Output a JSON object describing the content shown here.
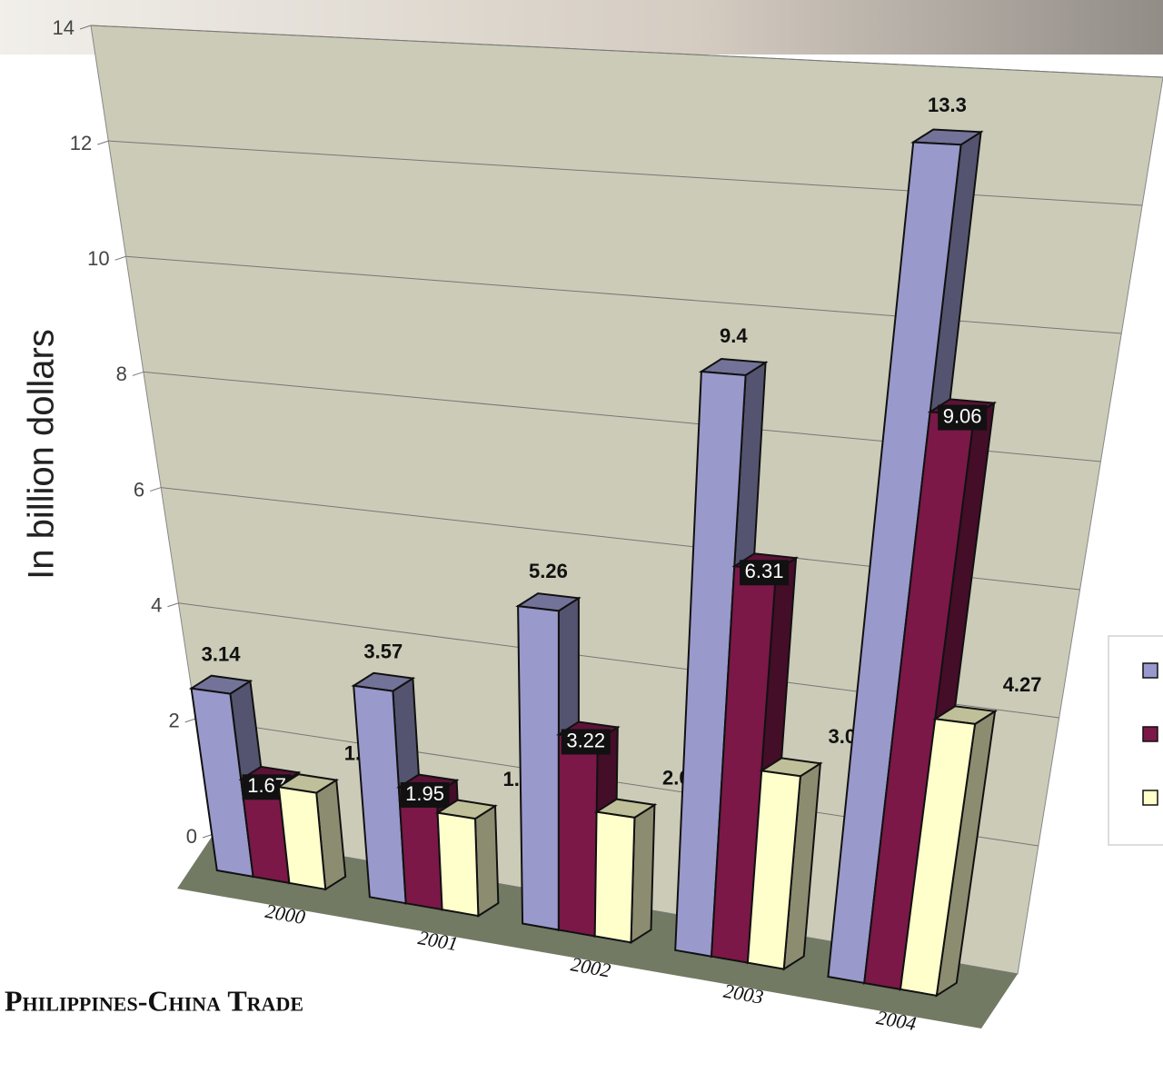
{
  "chart_data": {
    "type": "bar3d",
    "title": "Philippines-China Trade",
    "y_label": "In billion dollars",
    "categories": [
      "2000",
      "2001",
      "2002",
      "2003",
      "2004"
    ],
    "series": [
      {
        "color": "#9999cc",
        "values": [
          3.14,
          3.57,
          5.26,
          9.4,
          13.3
        ]
      },
      {
        "color": "#7b1848",
        "values": [
          1.67,
          1.95,
          3.22,
          6.31,
          9.06
        ]
      },
      {
        "color": "#ffffcc",
        "values": [
          1.64,
          1.62,
          2.04,
          3.09,
          4.27
        ]
      }
    ],
    "ylim": [
      0,
      14
    ],
    "yticks": [
      0,
      2,
      4,
      6,
      8,
      10,
      12,
      14
    ],
    "grid": true
  }
}
